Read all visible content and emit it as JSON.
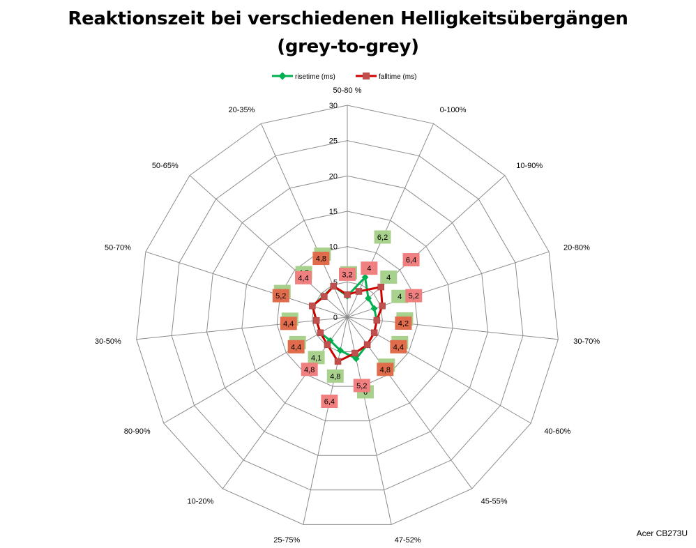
{
  "chart_data": {
    "type": "radar",
    "title": "Reaktionszeit bei verschiedenen Helligkeitsübergängen",
    "subtitle": "(grey-to-grey)",
    "categories": [
      "50-80 %",
      "0-100%",
      "10-90%",
      "20-80%",
      "30-70%",
      "40-60%",
      "45-55%",
      "47-52%",
      "25-75%",
      "10-20%",
      "80-90%",
      "30-50%",
      "50-70%",
      "50-65%",
      "20-35%"
    ],
    "ylim": [
      0,
      30
    ],
    "ticks": [
      0,
      5,
      10,
      15,
      20,
      25,
      30
    ],
    "tick_labels": [
      "0",
      "5",
      "10",
      "15",
      "20",
      "25",
      "30"
    ],
    "grid": true,
    "legend_position": "top",
    "series": [
      {
        "name": "risetime (ms)",
        "color": "#00b050",
        "marker": "diamond",
        "values": [
          3,
          6.2,
          4,
          4,
          4.2,
          4.4,
          4.8,
          6,
          4.8,
          4.1,
          4.4,
          4.4,
          5.2,
          4.5,
          4.8
        ],
        "labels": [
          "3",
          "6,2",
          "4",
          "4",
          "4,2",
          "4,4",
          "4,8",
          "6",
          "4,8",
          "4,1",
          "4,4",
          "4,4",
          "5,2",
          "4,5",
          "4,8"
        ],
        "label_color": "#a9d18e"
      },
      {
        "name": "falltime (ms)",
        "color": "#d00000",
        "marker": "square",
        "values": [
          3.2,
          4,
          6.4,
          5.2,
          4.2,
          4.4,
          4.8,
          5.2,
          6.4,
          4.8,
          4.4,
          4.4,
          5.2,
          4.4,
          4.8
        ],
        "labels": [
          "3,2",
          "4",
          "6,4",
          "5,2",
          "4,2",
          "4,4",
          "4,8",
          "5,2",
          "6,4",
          "4,8",
          "4,4",
          "4,4",
          "5,2",
          "4,4",
          "4,8"
        ],
        "label_color": "#f08080",
        "overlap_color": "#e06c4c"
      }
    ]
  },
  "footer": {
    "credit": "Acer CB273U"
  }
}
